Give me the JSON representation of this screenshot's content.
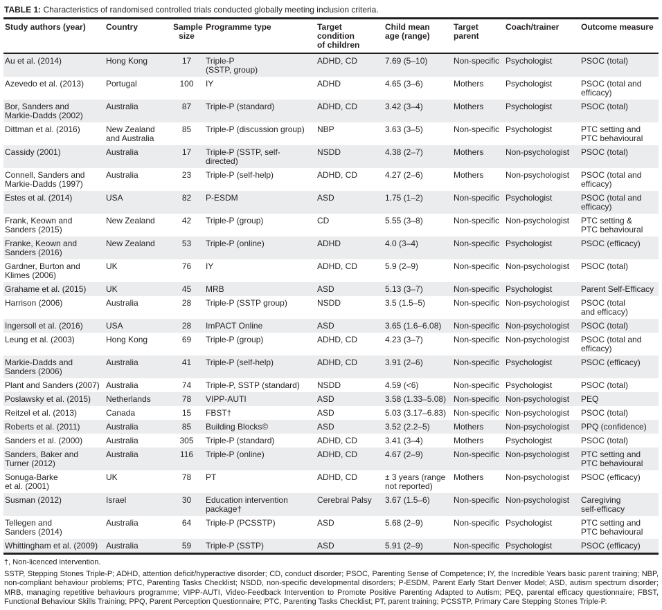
{
  "table": {
    "title_label": "TABLE 1:",
    "title_text": " Characteristics of randomised controlled trials conducted globally meeting inclusion criteria.",
    "columns": [
      "Study authors (year)",
      "Country",
      "Sample\nsize",
      "Programme type",
      "Target condition\nof children",
      "Child mean\nage (range)",
      "Target parent",
      "Coach/trainer",
      "Outcome measure"
    ],
    "rows": [
      [
        "Au et al. (2014)",
        "Hong Kong",
        "17",
        "Triple-P\n(SSTP, group)",
        "ADHD, CD",
        "7.69 (5–10)",
        "Non-specific",
        "Psychologist",
        "PSOC (total)"
      ],
      [
        "Azevedo et al. (2013)",
        "Portugal",
        "100",
        "IY",
        "ADHD",
        "4.65 (3–6)",
        "Mothers",
        "Psychologist",
        "PSOC (total and\nefficacy)"
      ],
      [
        "Bor, Sanders and\nMarkie-Dadds (2002)",
        "Australia",
        "87",
        "Triple-P (standard)",
        "ADHD, CD",
        "3.42 (3–4)",
        "Mothers",
        "Psychologist",
        "PSOC (total)"
      ],
      [
        "Dittman et al. (2016)",
        "New Zealand\nand Australia",
        "85",
        "Triple-P (discussion group)",
        "NBP",
        "3.63 (3–5)",
        "Non-specific",
        "Psychologist",
        "PTC setting and\nPTC behavioural"
      ],
      [
        "Cassidy (2001)",
        "Australia",
        "17",
        "Triple-P (SSTP, self-directed)",
        "NSDD",
        "4.38 (2–7)",
        "Mothers",
        "Non-psychologist",
        "PSOC (total)"
      ],
      [
        "Connell, Sanders and\nMarkie-Dadds (1997)",
        "Australia",
        "23",
        "Triple-P (self-help)",
        "ADHD, CD",
        "4.27 (2–6)",
        "Mothers",
        "Non-psychologist",
        "PSOC (total and\nefficacy)"
      ],
      [
        "Estes et al. (2014)",
        "USA",
        "82",
        "P-ESDM",
        "ASD",
        "1.75 (1–2)",
        "Non-specific",
        "Psychologist",
        "PSOC (total and\nefficacy)"
      ],
      [
        "Frank, Keown and\nSanders (2015)",
        "New Zealand",
        "42",
        "Triple-P (group)",
        "CD",
        "5.55 (3–8)",
        "Non-specific",
        "Non-psychologist",
        "PTC setting &\nPTC behavioural"
      ],
      [
        "Franke, Keown and\nSanders (2016)",
        "New Zealand",
        "53",
        "Triple-P (online)",
        "ADHD",
        "4.0 (3–4)",
        "Non-specific",
        "Psychologist",
        "PSOC (efficacy)"
      ],
      [
        "Gardner, Burton and\nKlimes (2006)",
        "UK",
        "76",
        "IY",
        "ADHD, CD",
        "5.9 (2–9)",
        "Non-specific",
        "Non-psychologist",
        "PSOC (total)"
      ],
      [
        "Grahame et al. (2015)",
        "UK",
        "45",
        "MRB",
        "ASD",
        "5.13 (3–7)",
        "Non-specific",
        "Psychologist",
        "Parent Self-Efficacy"
      ],
      [
        "Harrison (2006)",
        "Australia",
        "28",
        "Triple-P (SSTP group)",
        "NSDD",
        "3.5 (1.5–5)",
        "Non-specific",
        "Non-psychologist",
        "PSOC (total\nand efficacy)"
      ],
      [
        "Ingersoll et al. (2016)",
        "USA",
        "28",
        "ImPACT Online",
        "ASD",
        "3.65 (1.6–6.08)",
        "Non-specific",
        "Non-psychologist",
        "PSOC (total)"
      ],
      [
        "Leung et al. (2003)",
        "Hong Kong",
        "69",
        "Triple-P (group)",
        "ADHD, CD",
        "4.23 (3–7)",
        "Non-specific",
        "Non-psychologist",
        "PSOC (total and\nefficacy)"
      ],
      [
        "Markie-Dadds and\nSanders (2006)",
        "Australia",
        "41",
        "Triple-P (self-help)",
        "ADHD, CD",
        "3.91 (2–6)",
        "Non-specific",
        "Psychologist",
        "PSOC (efficacy)"
      ],
      [
        "Plant and Sanders (2007)",
        "Australia",
        "74",
        "Triple-P, SSTP (standard)",
        "NSDD",
        "4.59 (<6)",
        "Non-specific",
        "Psychologist",
        "PSOC (total)"
      ],
      [
        "Poslawsky et al. (2015)",
        "Netherlands",
        "78",
        "VIPP-AUTI",
        "ASD",
        "3.58 (1.33–5.08)",
        "Non-specific",
        "Non-psychologist",
        "PEQ"
      ],
      [
        "Reitzel et al. (2013)",
        "Canada",
        "15",
        "FBST†",
        "ASD",
        "5.03 (3.17–6.83)",
        "Non-specific",
        "Non-psychologist",
        "PSOC (total)"
      ],
      [
        "Roberts et al. (2011)",
        "Australia",
        "85",
        "Building Blocks©",
        "ASD",
        "3.52 (2.2–5)",
        "Mothers",
        "Non-psychologist",
        "PPQ (confidence)"
      ],
      [
        "Sanders et al. (2000)",
        "Australia",
        "305",
        "Triple-P (standard)",
        "ADHD, CD",
        "3.41 (3–4)",
        "Mothers",
        "Psychologist",
        "PSOC (total)"
      ],
      [
        "Sanders, Baker and\nTurner (2012)",
        "Australia",
        "116",
        "Triple-P (online)",
        "ADHD, CD",
        "4.67 (2–9)",
        "Non-specific",
        "Non-psychologist",
        "PTC setting and\nPTC behavioural"
      ],
      [
        "Sonuga-Barke\net al. (2001)",
        "UK",
        "78",
        "PT",
        "ADHD, CD",
        "± 3 years (range\nnot reported)",
        "Mothers",
        "Non-psychologist",
        "PSOC (efficacy)"
      ],
      [
        "Susman (2012)",
        "Israel",
        "30",
        "Education intervention\npackage†",
        "Cerebral Palsy",
        "3.67 (1.5–6)",
        "Non-specific",
        "Non-psychologist",
        "Caregiving\nself-efficacy"
      ],
      [
        "Tellegen and\nSanders (2014)",
        "Australia",
        "64",
        "Triple-P (PCSSTP)",
        "ASD",
        "5.68 (2–9)",
        "Non-specific",
        "Psychologist",
        "PTC setting and\nPTC behavioural"
      ],
      [
        "Whittingham et al. (2009)",
        "Australia",
        "59",
        "Triple-P (SSTP)",
        "ASD",
        "5.91 (2–9)",
        "Non-specific",
        "Psychologist",
        "PSOC (efficacy)"
      ]
    ]
  },
  "footnotes": {
    "dagger_note": "†, Non-licenced intervention.",
    "abbreviations": "SSTP, Stepping Stones Triple-P; ADHD, attention deficit/hyperactive disorder; CD, conduct disorder; PSOC, Parenting Sense of Competence; IY, the Incredible Years basic parent training; NBP, non-compliant behaviour problems; PTC, Parenting Tasks Checklist; NSDD, non-specific developmental disorders; P-ESDM, Parent Early Start Denver Model; ASD, autism spectrum disorder; MRB, managing repetitive behaviours programme; VIPP-AUTI, Video-Feedback Intervention to Promote Positive Parenting Adapted to Autism; PEQ, parental efficacy questionnaire; FBST, Functional Behaviour Skills Training; PPQ, Parent Perception Questionnaire; PTC, Parenting Tasks Checklist; PT, parent training; PCSSTP, Primary Care Stepping Stones Triple-P."
  },
  "colors": {
    "stripe": "#ebecee",
    "rule": "#231f20",
    "text": "#231f20"
  }
}
